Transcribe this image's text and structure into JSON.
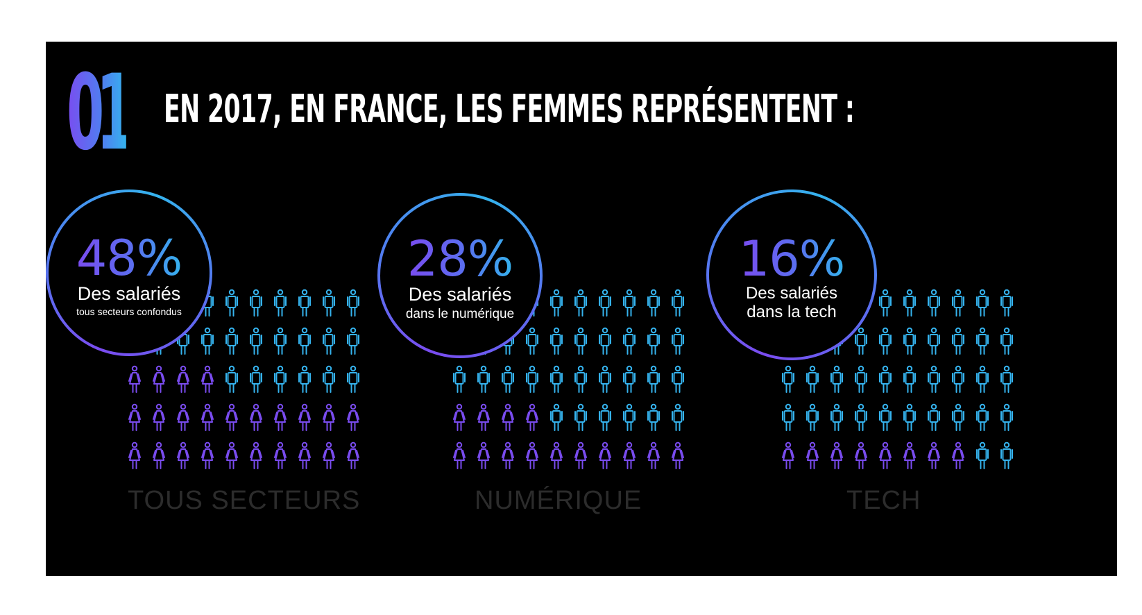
{
  "header": {
    "number": "01",
    "title": "EN 2017, EN FRANCE, LES FEMMES REPRÉSENTENT :"
  },
  "colors": {
    "background": "#000000",
    "purple": "#7a4cf0",
    "cyan": "#35b3ee",
    "label": "#2c2c2c"
  },
  "icon_legend": {
    "female": "female-person-icon",
    "male": "male-person-icon"
  },
  "sectors": [
    {
      "percent": "48%",
      "description": "Des salariés",
      "subtitle": "tous secteurs confondus",
      "label": "TOUS SECTEURS",
      "female_share": 48
    },
    {
      "percent": "28%",
      "description": "Des salariés",
      "subtitle": "dans le numérique",
      "label": "NUMÉRIQUE",
      "female_share": 28
    },
    {
      "percent": "16%",
      "description": "Des salariés",
      "subtitle": "dans la tech",
      "label": "TECH",
      "female_share": 16
    }
  ]
}
